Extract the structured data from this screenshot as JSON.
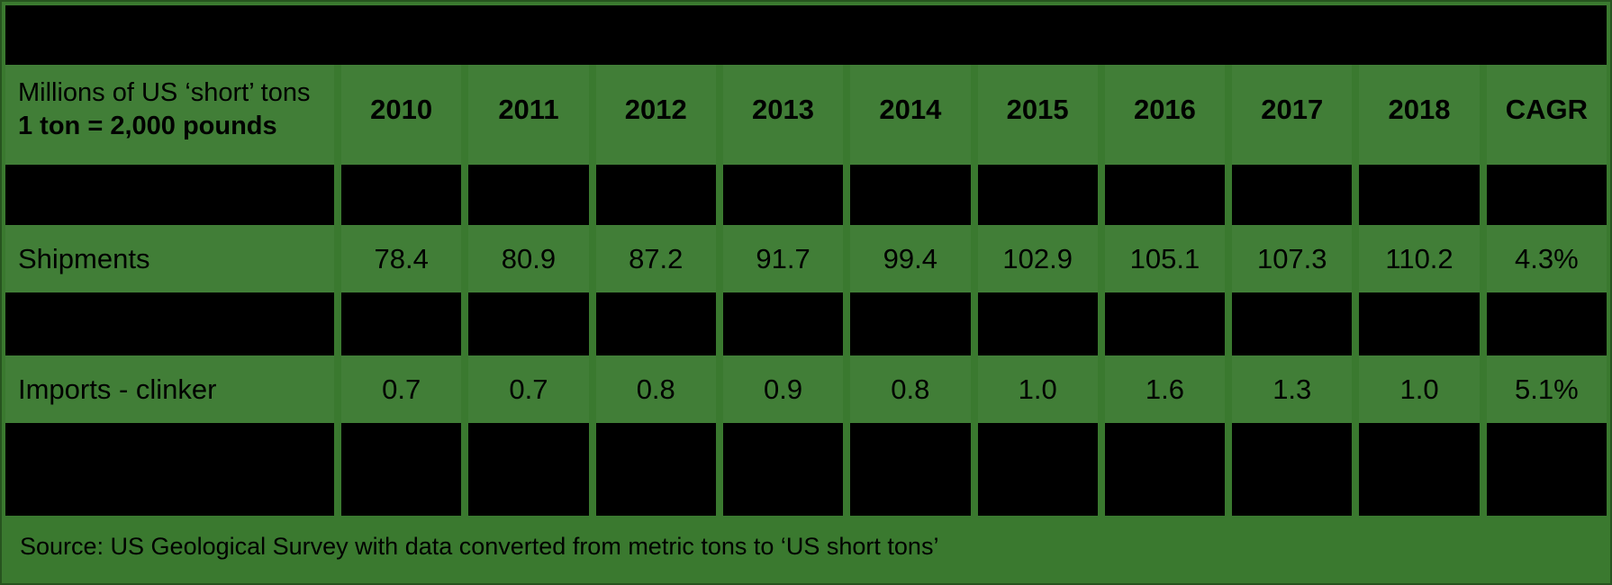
{
  "chart_data": {
    "type": "table",
    "title": "(redacted black bar)",
    "unit_note_line1": "Millions of US ‘short’ tons",
    "unit_note_line2": "1 ton = 2,000 pounds",
    "columns": [
      "2010",
      "2011",
      "2012",
      "2013",
      "2014",
      "2015",
      "2016",
      "2017",
      "2018",
      "CAGR"
    ],
    "series": [
      {
        "name": "Shipments",
        "values": [
          "78.4",
          "80.9",
          "87.2",
          "91.7",
          "99.4",
          "102.9",
          "105.1",
          "107.3",
          "110.2"
        ],
        "cagr": "4.3%"
      },
      {
        "name": "Imports - clinker",
        "values": [
          "0.7",
          "0.7",
          "0.8",
          "0.9",
          "0.8",
          "1.0",
          "1.6",
          "1.3",
          "1.0"
        ],
        "cagr": "5.1%"
      }
    ],
    "redacted_regions": [
      "full-width title bar at top",
      "row of blacked-out cells below header",
      "row of blacked-out cells between Shipments and Imports - clinker",
      "tall row of blacked-out cells above source line"
    ],
    "source": "Source: US Geological Survey with data converted from metric tons to ‘US short tons’"
  },
  "colors": {
    "background": "#3a792f",
    "redaction": "#000000",
    "text": "#000000",
    "edge_border": "#27541f"
  }
}
